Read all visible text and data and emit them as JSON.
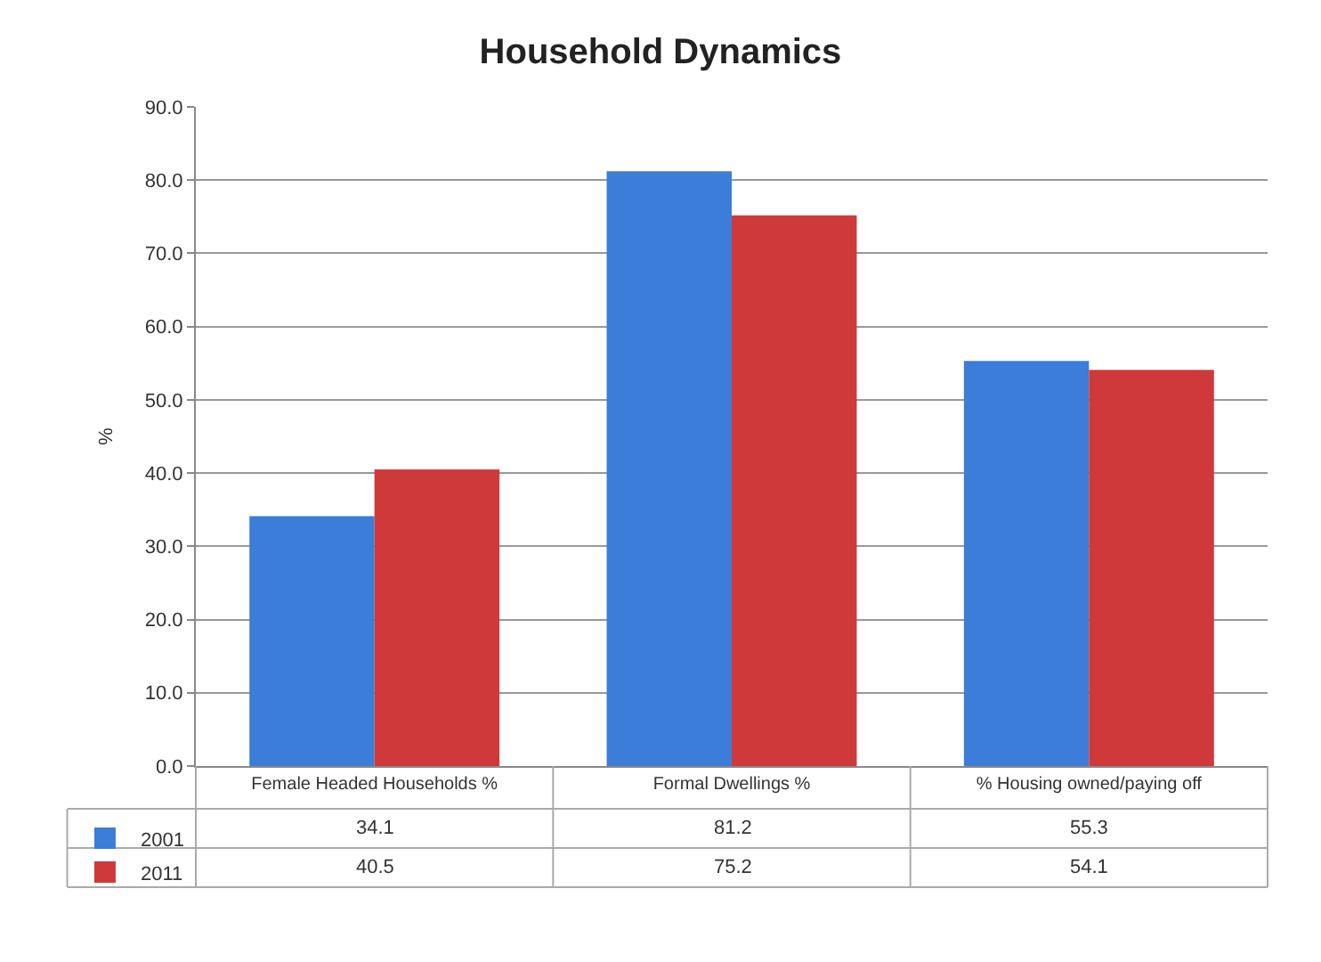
{
  "chart_data": {
    "type": "bar",
    "title": "Household Dynamics",
    "ylabel": "%",
    "categories": [
      "Female Headed Households %",
      "Formal Dwellings %",
      "% Housing owned/paying off"
    ],
    "series": [
      {
        "name": "2001",
        "color": "#3b7dd8",
        "values": [
          34.1,
          81.2,
          55.3
        ]
      },
      {
        "name": "2011",
        "color": "#d0393a",
        "values": [
          40.5,
          75.2,
          54.1
        ]
      }
    ],
    "ylim": [
      0,
      90
    ],
    "yticks": [
      {
        "value": 0,
        "label": "0.0"
      },
      {
        "value": 10,
        "label": "10.0"
      },
      {
        "value": 20,
        "label": "20.0"
      },
      {
        "value": 30,
        "label": "30.0"
      },
      {
        "value": 40,
        "label": "40.0"
      },
      {
        "value": 50,
        "label": "50.0"
      },
      {
        "value": 60,
        "label": "60.0"
      },
      {
        "value": 70,
        "label": "70.0"
      },
      {
        "value": 80,
        "label": "80.0"
      },
      {
        "value": 90,
        "label": "90.0"
      }
    ],
    "grid": "y",
    "legend": "bottom left",
    "data_labels": true
  }
}
